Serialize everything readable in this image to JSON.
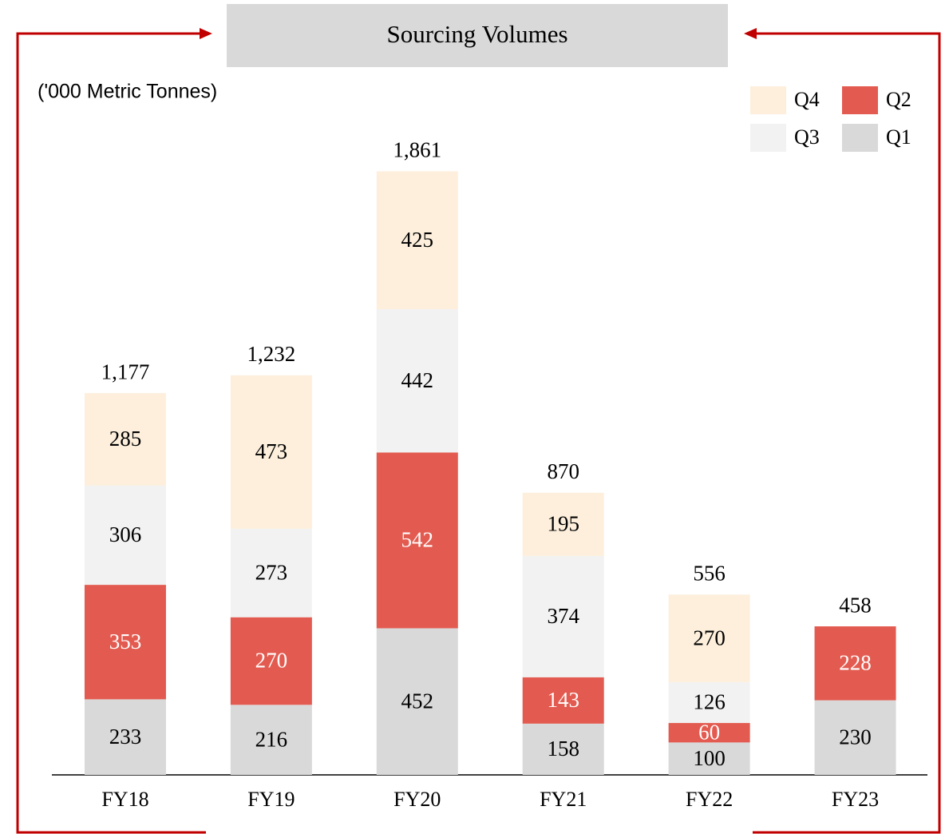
{
  "chart_data": {
    "type": "stacked_bar",
    "title": "Sourcing Volumes",
    "subtitle": "('000 Metric Tonnes)",
    "categories": [
      "FY18",
      "FY19",
      "FY20",
      "FY21",
      "FY22",
      "FY23"
    ],
    "series": [
      {
        "name": "Q1",
        "color": "#d9d9d9",
        "values": [
          233,
          216,
          452,
          158,
          100,
          230
        ]
      },
      {
        "name": "Q2",
        "color": "#e35b50",
        "values": [
          353,
          270,
          542,
          143,
          60,
          228
        ]
      },
      {
        "name": "Q3",
        "color": "#f2f2f2",
        "values": [
          306,
          273,
          442,
          374,
          126,
          null
        ]
      },
      {
        "name": "Q4",
        "color": "#fdefdc",
        "values": [
          285,
          473,
          425,
          195,
          270,
          null
        ]
      }
    ],
    "totals": [
      1177,
      1232,
      1861,
      870,
      556,
      458
    ],
    "total_labels": [
      "1,177",
      "1,232",
      "1,861",
      "870",
      "556",
      "458"
    ],
    "ylim": [
      0,
      2000
    ],
    "legend": "top-right"
  }
}
